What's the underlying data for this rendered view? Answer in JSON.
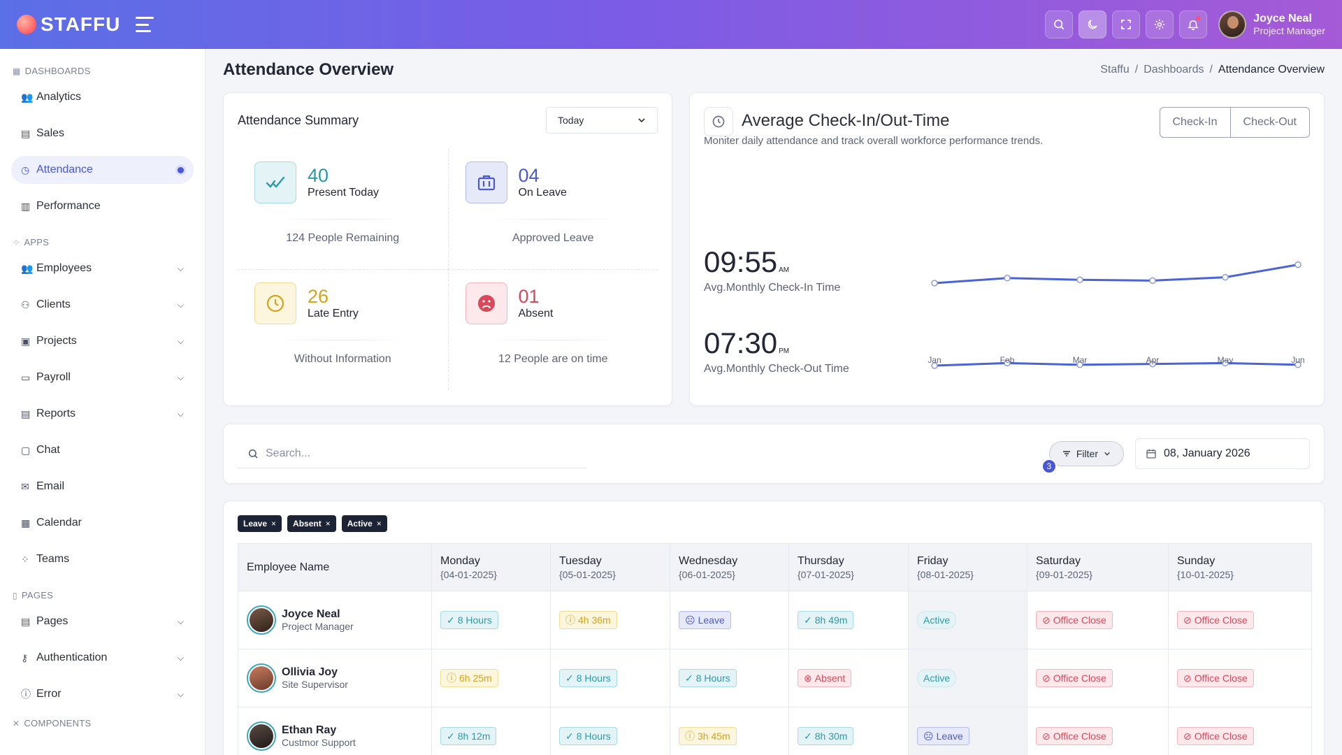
{
  "app": {
    "brand": "STAFFU"
  },
  "user": {
    "name": "Joyce Neal",
    "role": "Project Manager"
  },
  "sidebar": {
    "sections": {
      "dashboards": "DASHBOARDS",
      "apps": "APPS",
      "pages": "PAGES",
      "components": "COMPONENTS"
    },
    "dashboards": [
      "Analytics",
      "Sales",
      "Attendance",
      "Performance"
    ],
    "apps": [
      "Employees",
      "Clients",
      "Projects",
      "Payroll",
      "Reports",
      "Chat",
      "Email",
      "Calendar",
      "Teams"
    ],
    "pages": [
      "Pages",
      "Authentication",
      "Error"
    ]
  },
  "page": {
    "title": "Attendance Overview",
    "breadcrumb": [
      "Staffu",
      "Dashboards",
      "Attendance Overview"
    ]
  },
  "summary": {
    "title": "Attendance Summary",
    "period": "Today",
    "stats": [
      {
        "value": "40",
        "label": "Present Today",
        "foot": "124 People Remaining",
        "color": "#2b9aa8",
        "icon": "double-check-icon"
      },
      {
        "value": "04",
        "label": "On Leave",
        "foot": "Approved Leave",
        "color": "#4d5bc9",
        "icon": "briefcase-icon"
      },
      {
        "value": "26",
        "label": "Late Entry",
        "foot": "Without Information",
        "color": "#d4a319",
        "icon": "clock-icon"
      },
      {
        "value": "01",
        "label": "Absent",
        "foot": "12 People are on time",
        "color": "#d9475a",
        "icon": "sad-face-icon"
      }
    ]
  },
  "checkin": {
    "title": "Average Check-In/Out-Time",
    "subtitle": "Moniter daily attendance and track overall workforce performance trends.",
    "tabs": [
      "Check-In",
      "Check-Out"
    ],
    "checkin_time": "09:55",
    "checkin_suffix": "AM",
    "checkin_caption": "Avg.Monthly Check-In Time",
    "checkout_time": "07:30",
    "checkout_suffix": "PM",
    "checkout_caption": "Avg.Monthly Check-Out Time"
  },
  "chart_data": {
    "type": "line",
    "x": [
      "Jan",
      "Feb",
      "Mar",
      "Apr",
      "May",
      "Jun"
    ],
    "series": [
      {
        "values": [
          30,
          36,
          34,
          33,
          37,
          52
        ]
      },
      {
        "values": [
          30,
          33,
          31,
          32,
          33,
          31
        ]
      }
    ]
  },
  "toolbar": {
    "search_placeholder": "Search...",
    "filter_label": "Filter",
    "filter_count": "3",
    "date": "08, January 2026"
  },
  "chips": [
    "Leave",
    "Absent",
    "Active"
  ],
  "table": {
    "employee_header": "Employee Name",
    "days": [
      {
        "name": "Monday",
        "date": "{04-01-2025}"
      },
      {
        "name": "Tuesday",
        "date": "{05-01-2025}"
      },
      {
        "name": "Wednesday",
        "date": "{06-01-2025}"
      },
      {
        "name": "Thursday",
        "date": "{07-01-2025}"
      },
      {
        "name": "Friday",
        "date": "{08-01-2025}"
      },
      {
        "name": "Saturday",
        "date": "{09-01-2025}"
      },
      {
        "name": "Sunday",
        "date": "{10-01-2025}"
      }
    ],
    "rows": [
      {
        "name": "Joyce Neal",
        "role": "Project Manager",
        "cells": [
          {
            "type": "hours",
            "text": "8 Hours"
          },
          {
            "type": "late",
            "text": "4h 36m"
          },
          {
            "type": "leave",
            "text": "Leave"
          },
          {
            "type": "hours",
            "text": "8h 49m"
          },
          {
            "type": "active",
            "text": "Active"
          },
          {
            "type": "close",
            "text": "Office Close"
          },
          {
            "type": "close",
            "text": "Office Close"
          }
        ]
      },
      {
        "name": "Ollivia Joy",
        "role": "Site Supervisor",
        "cells": [
          {
            "type": "late",
            "text": "6h 25m"
          },
          {
            "type": "hours",
            "text": "8 Hours"
          },
          {
            "type": "hours",
            "text": "8 Hours"
          },
          {
            "type": "absent",
            "text": "Absent"
          },
          {
            "type": "active",
            "text": "Active"
          },
          {
            "type": "close",
            "text": "Office Close"
          },
          {
            "type": "close",
            "text": "Office Close"
          }
        ]
      },
      {
        "name": "Ethan Ray",
        "role": "Custmor Support",
        "cells": [
          {
            "type": "hours",
            "text": "8h 12m"
          },
          {
            "type": "hours",
            "text": "8 Hours"
          },
          {
            "type": "late",
            "text": "3h 45m"
          },
          {
            "type": "hours",
            "text": "8h 30m"
          },
          {
            "type": "leave",
            "text": "Leave"
          },
          {
            "type": "close",
            "text": "Office Close"
          },
          {
            "type": "close",
            "text": "Office Close"
          }
        ]
      }
    ]
  }
}
